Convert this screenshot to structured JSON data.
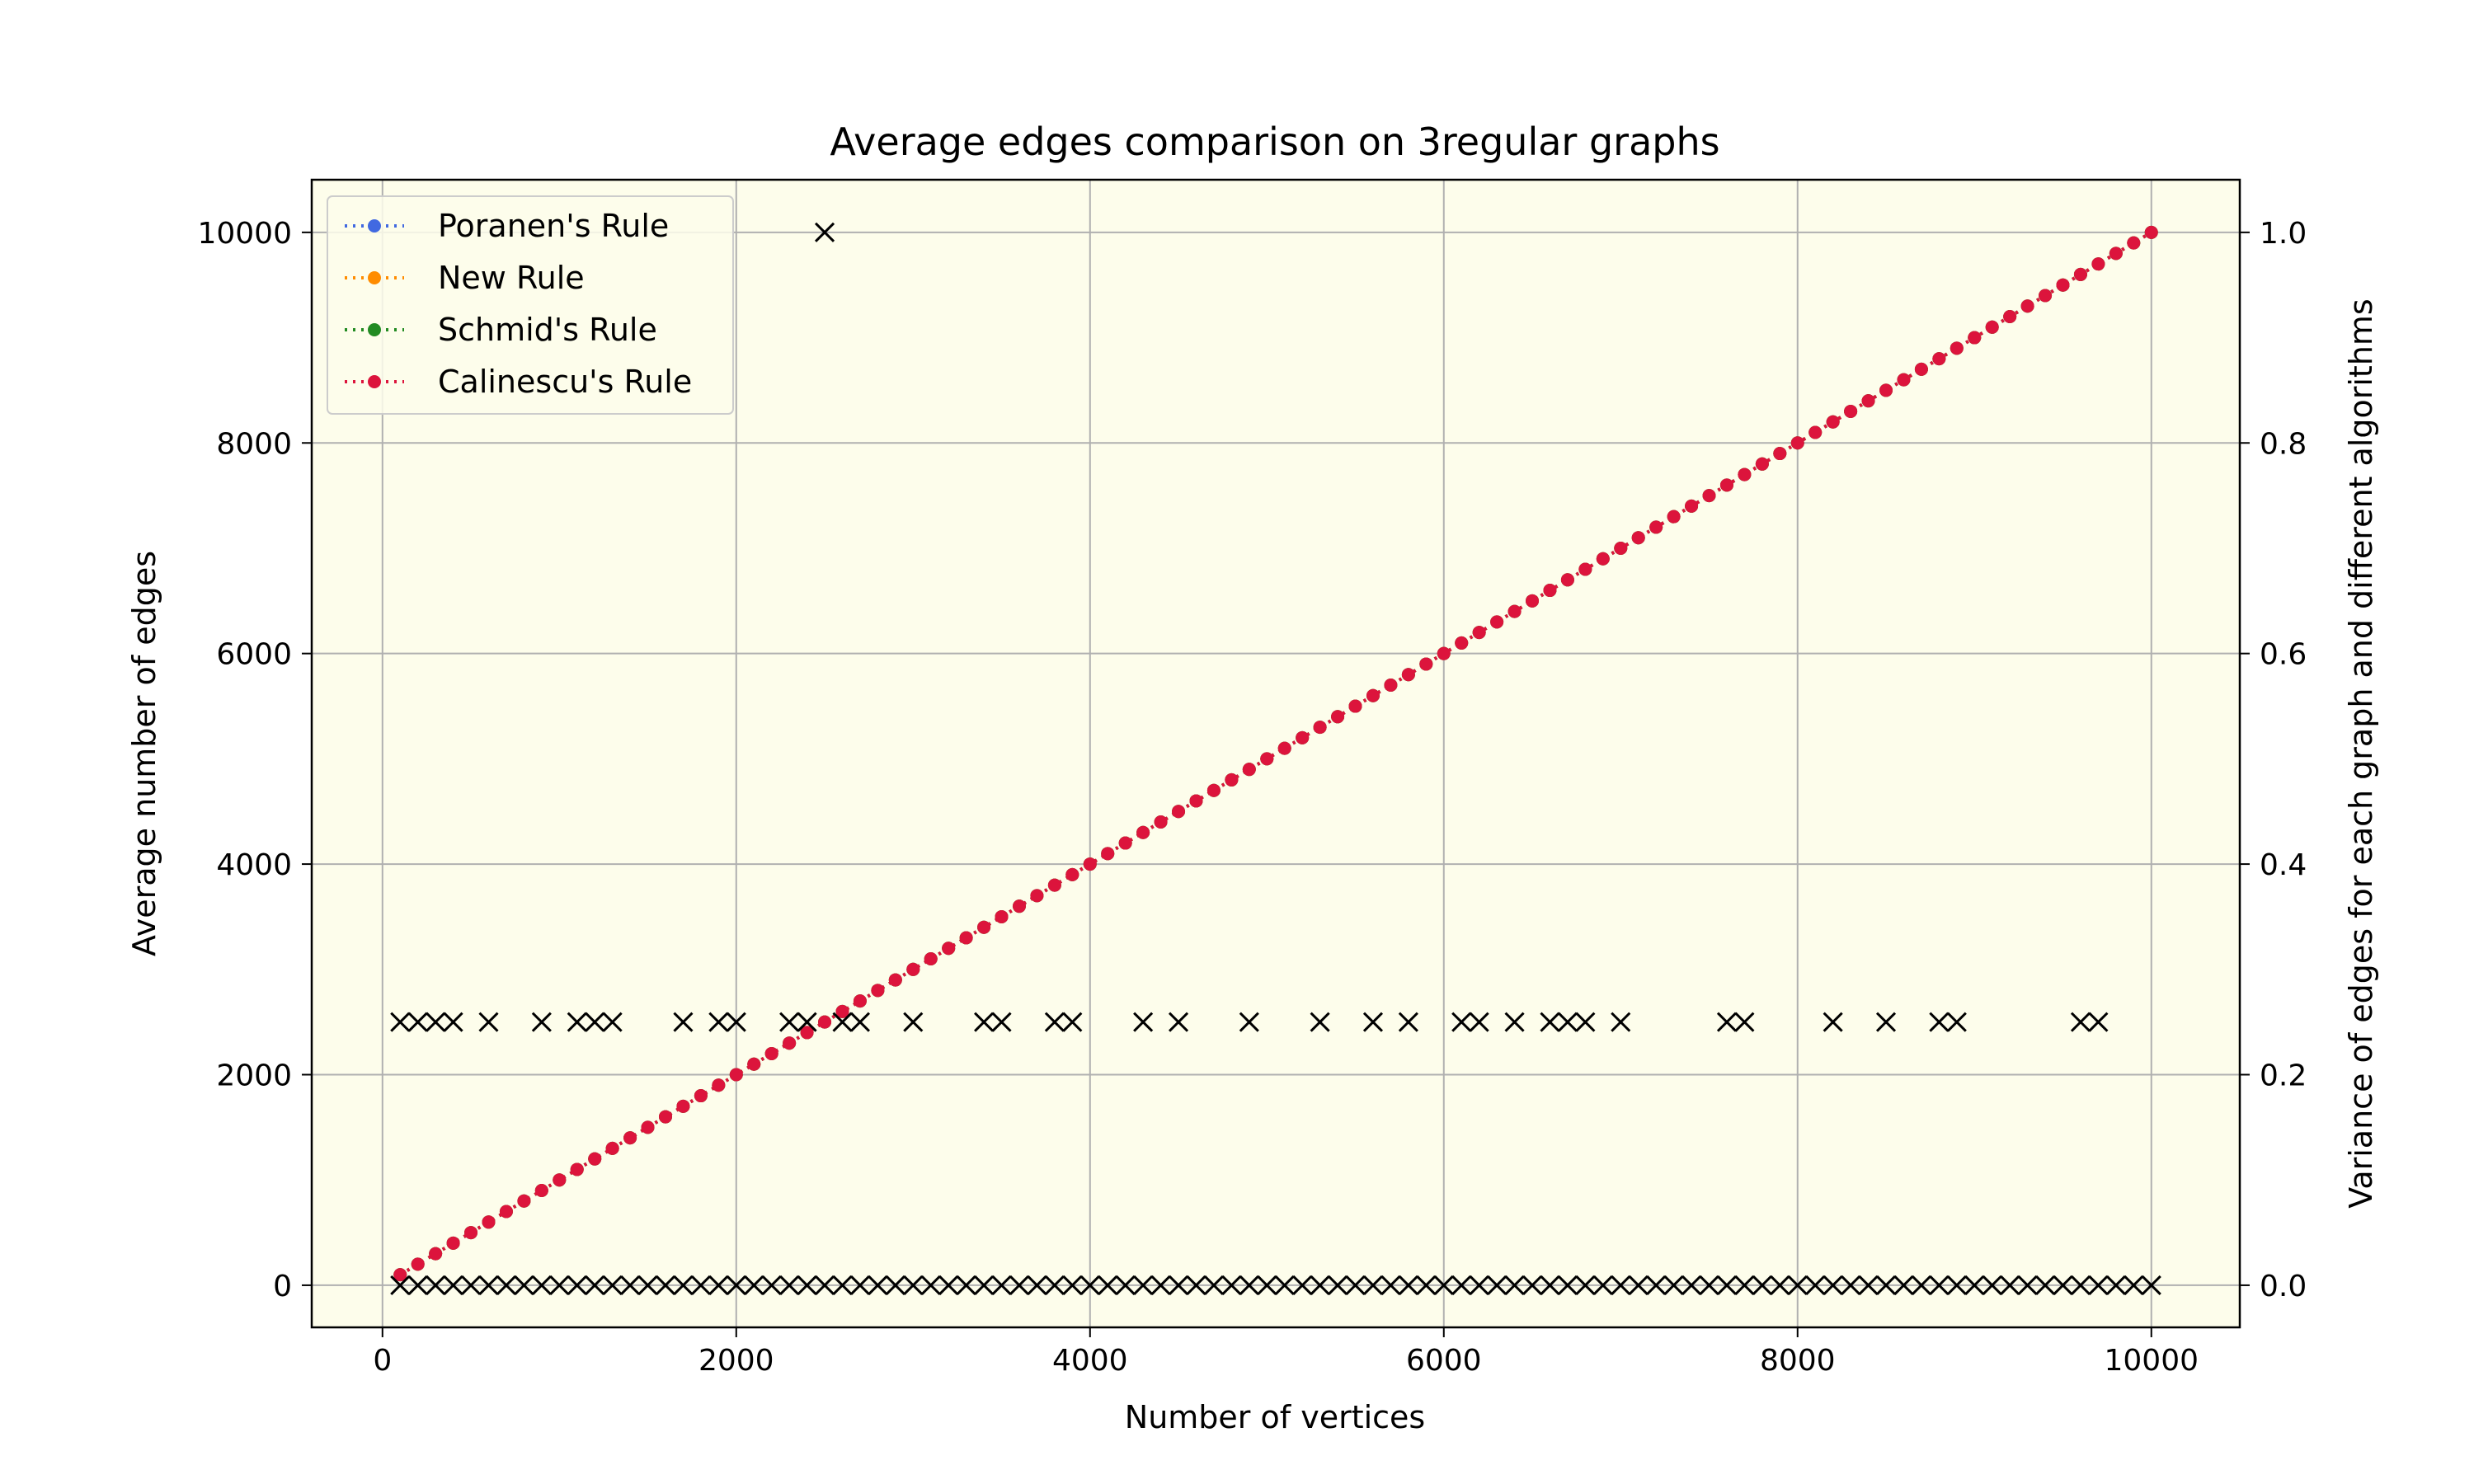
{
  "chart_data": {
    "type": "line",
    "title": "Average edges comparison on 3regular graphs",
    "xlabel": "Number of vertices",
    "ylabel": "Average number of edges",
    "y2label": "Variance of edges for each graph and different algorithms",
    "xlim": [
      -400,
      10500
    ],
    "ylim": [
      -400,
      10500
    ],
    "y2lim": [
      -0.04,
      1.05
    ],
    "xticks": [
      0,
      2000,
      4000,
      6000,
      8000,
      10000
    ],
    "yticks": [
      0,
      2000,
      4000,
      6000,
      8000,
      10000
    ],
    "y2ticks": [
      0.0,
      0.2,
      0.4,
      0.6,
      0.8,
      1.0
    ],
    "xtick_labels": [
      "0",
      "2000",
      "4000",
      "6000",
      "8000",
      "10000"
    ],
    "ytick_labels": [
      "0",
      "2000",
      "4000",
      "6000",
      "8000",
      "10000"
    ],
    "y2tick_labels": [
      "0.0",
      "0.2",
      "0.4",
      "0.6",
      "0.8",
      "1.0"
    ],
    "grid": true,
    "legend_position": "top-left",
    "background_color": "#fdfdeb",
    "series": [
      {
        "name": "Poranen's Rule",
        "color": "#4169e1",
        "x_range": [
          100,
          10000,
          100
        ],
        "values_note": "y = x"
      },
      {
        "name": "New Rule",
        "color": "#ff8c00",
        "x_range": [
          100,
          10000,
          100
        ],
        "values_note": "y = x"
      },
      {
        "name": "Schmid's Rule",
        "color": "#228b22",
        "x_range": [
          100,
          10000,
          100
        ],
        "values_note": "y = x"
      },
      {
        "name": "Calinescu's Rule",
        "color": "#dc143c",
        "x_range": [
          100,
          10000,
          100
        ],
        "values_note": "y = x"
      }
    ],
    "variance_series": {
      "marker": "x",
      "color": "#000000",
      "axis": "right",
      "baseline_x_range": [
        100,
        10000,
        100
      ],
      "baseline_value": 0.0,
      "points_at_0_25": [
        100,
        200,
        300,
        400,
        600,
        900,
        1100,
        1200,
        1300,
        1700,
        1900,
        2000,
        2300,
        2400,
        2600,
        2700,
        3000,
        3400,
        3500,
        3800,
        3900,
        4300,
        4500,
        4900,
        5300,
        5600,
        5800,
        6100,
        6200,
        6400,
        6600,
        6700,
        6800,
        7000,
        7600,
        7700,
        8200,
        8500,
        8800,
        8900,
        9600,
        9700
      ],
      "points_at_1_0": [
        2500
      ]
    }
  }
}
